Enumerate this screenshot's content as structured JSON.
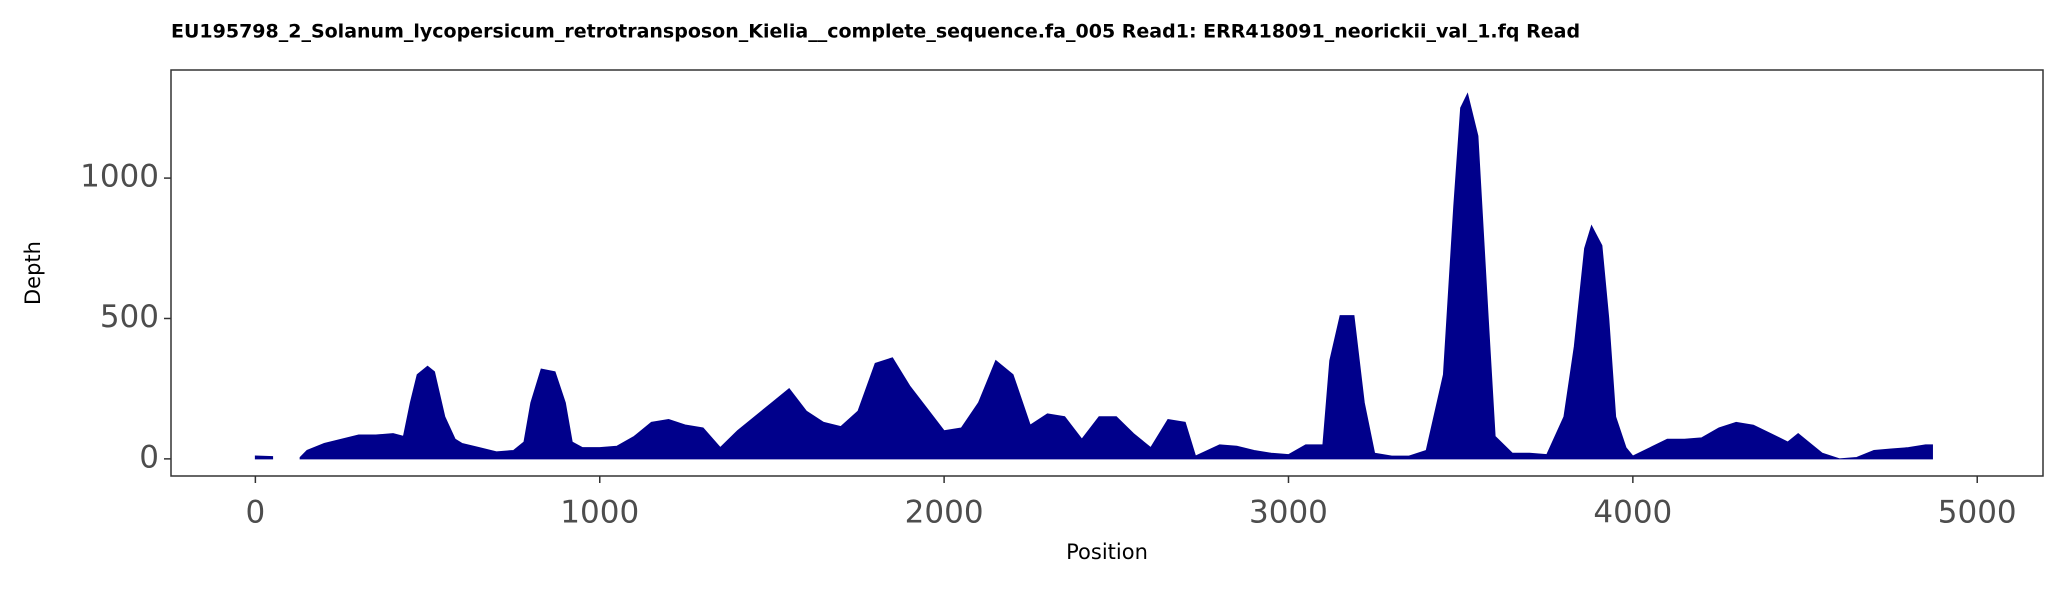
{
  "chart_data": {
    "type": "area",
    "title": "EU195798_2_Solanum_lycopersicum_retrotransposon_Kielia__complete_sequence.fa_005   Read1: ERR418091_neorickii_val_1.fq   Read",
    "x_label": "Position",
    "y_label": "Depth",
    "color": "#00008b",
    "x": [
      0,
      50,
      100,
      130,
      150,
      200,
      250,
      300,
      350,
      400,
      430,
      450,
      470,
      500,
      520,
      550,
      580,
      600,
      650,
      700,
      750,
      780,
      800,
      830,
      870,
      900,
      920,
      950,
      1000,
      1050,
      1100,
      1150,
      1200,
      1250,
      1300,
      1350,
      1400,
      1450,
      1500,
      1550,
      1600,
      1650,
      1700,
      1750,
      1800,
      1850,
      1900,
      1950,
      2000,
      2050,
      2100,
      2150,
      2200,
      2250,
      2300,
      2350,
      2400,
      2450,
      2500,
      2550,
      2600,
      2650,
      2700,
      2730,
      2800,
      2850,
      2900,
      2950,
      3000,
      3050,
      3100,
      3120,
      3150,
      3190,
      3220,
      3250,
      3300,
      3350,
      3400,
      3450,
      3480,
      3500,
      3520,
      3550,
      3580,
      3600,
      3650,
      3700,
      3750,
      3800,
      3830,
      3860,
      3880,
      3910,
      3930,
      3950,
      3980,
      4000,
      4050,
      4100,
      4150,
      4200,
      4250,
      4300,
      4350,
      4400,
      4450,
      4480,
      4520,
      4550,
      4600,
      4650,
      4700,
      4750,
      4800,
      4850,
      4870
    ],
    "values": [
      10,
      8,
      null,
      5,
      30,
      55,
      70,
      85,
      85,
      90,
      80,
      200,
      300,
      330,
      310,
      150,
      70,
      55,
      40,
      25,
      30,
      60,
      200,
      320,
      310,
      200,
      60,
      40,
      40,
      45,
      80,
      130,
      140,
      120,
      110,
      40,
      100,
      150,
      200,
      250,
      170,
      130,
      115,
      170,
      340,
      360,
      260,
      180,
      100,
      110,
      200,
      350,
      300,
      120,
      160,
      150,
      70,
      150,
      150,
      90,
      40,
      140,
      130,
      10,
      50,
      45,
      30,
      20,
      15,
      50,
      50,
      350,
      510,
      510,
      200,
      20,
      10,
      10,
      30,
      300,
      900,
      1250,
      1300,
      1150,
      500,
      80,
      20,
      20,
      15,
      150,
      400,
      750,
      830,
      760,
      500,
      150,
      40,
      10,
      40,
      70,
      70,
      75,
      110,
      130,
      120,
      90,
      60,
      90,
      50,
      20,
      0,
      5,
      30,
      35,
      40,
      50,
      50
    ],
    "xlim": [
      -245,
      5191
    ],
    "ylim": [
      -61,
      1385
    ],
    "xticks": [
      0,
      1000,
      2000,
      3000,
      4000,
      5000
    ],
    "yticks": [
      0,
      500,
      1000
    ]
  }
}
